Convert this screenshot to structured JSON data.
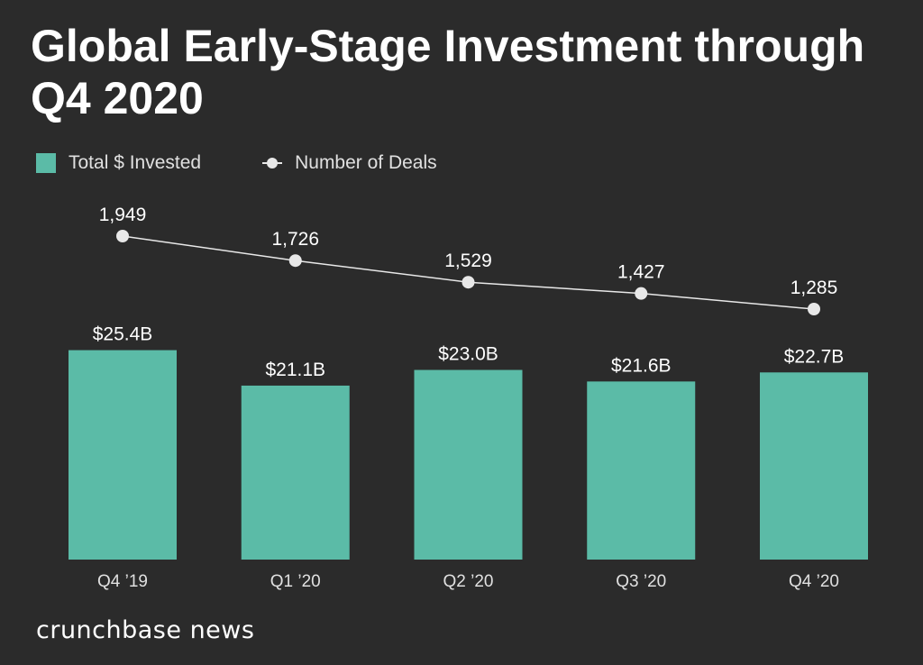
{
  "title": "Global Early-Stage Investment through Q4 2020",
  "legend": {
    "invested_label": "Total $ Invested",
    "deals_label": "Number of Deals"
  },
  "brand": "crunchbase news",
  "colors": {
    "background": "#2b2b2b",
    "bar": "#5bbba7",
    "line": "#e8e8e8",
    "text": "#ffffff"
  },
  "chart_data": {
    "type": "bar",
    "categories": [
      "Q4 ’19",
      "Q1 ’20",
      "Q2 ’20",
      "Q3 ’20",
      "Q4 ’20"
    ],
    "series": [
      {
        "name": "Total $ Invested",
        "type": "bar",
        "values": [
          25.4,
          21.1,
          23.0,
          21.6,
          22.7
        ],
        "labels": [
          "$25.4B",
          "$21.1B",
          "$23.0B",
          "$21.6B",
          "$22.7B"
        ]
      },
      {
        "name": "Number of Deals",
        "type": "line",
        "values": [
          1949,
          1726,
          1529,
          1427,
          1285
        ],
        "labels": [
          "1,949",
          "1,726",
          "1,529",
          "1,427",
          "1,285"
        ]
      }
    ],
    "legend": "top-left",
    "grid": false
  }
}
